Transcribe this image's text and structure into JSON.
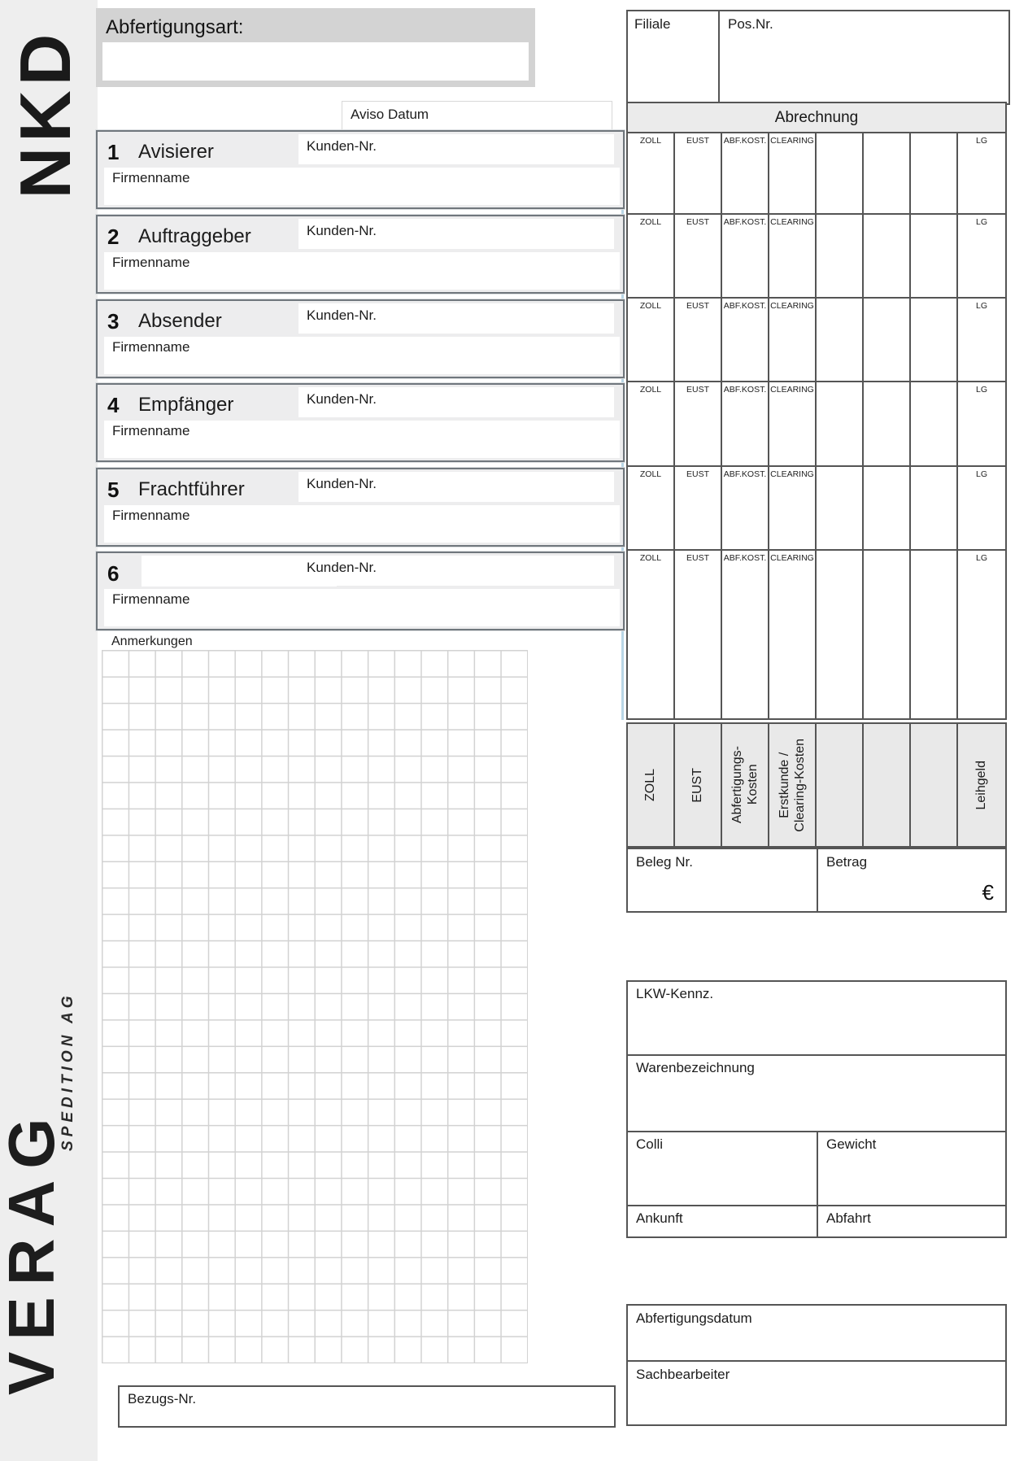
{
  "brand": {
    "top_logo": "NKD",
    "bottom_logo_main": "VERAG",
    "bottom_logo_sub": "SPEDITION AG"
  },
  "header": {
    "abfertigungsart_label": "Abfertigungsart:",
    "filiale_label": "Filiale",
    "pos_nr_label": "Pos.Nr.",
    "aviso_datum_label": "Aviso Datum"
  },
  "abrechnung": {
    "title": "Abrechnung",
    "columns": [
      "ZOLL",
      "EUST",
      "ABF.KOST.",
      "CLEARING",
      "",
      "",
      "",
      "LG"
    ]
  },
  "sections": [
    {
      "num": "1",
      "title": "Avisierer",
      "kunden_label": "Kunden-Nr.",
      "firmen_label": "Firmenname"
    },
    {
      "num": "2",
      "title": "Auftraggeber",
      "kunden_label": "Kunden-Nr.",
      "firmen_label": "Firmenname"
    },
    {
      "num": "3",
      "title": "Absender",
      "kunden_label": "Kunden-Nr.",
      "firmen_label": "Firmenname"
    },
    {
      "num": "4",
      "title": "Empfänger",
      "kunden_label": "Kunden-Nr.",
      "firmen_label": "Firmenname"
    },
    {
      "num": "5",
      "title": "Frachtführer",
      "kunden_label": "Kunden-Nr.",
      "firmen_label": "Firmenname"
    },
    {
      "num": "6",
      "title": "",
      "kunden_label": "Kunden-Nr.",
      "firmen_label": "Firmenname"
    }
  ],
  "rotated_columns": [
    "ZOLL",
    "EUST",
    "Abfertigungs-\nKosten",
    "Erstkunde /\nClearing-Kosten",
    "",
    "",
    "",
    "Leihgeld"
  ],
  "settlement": {
    "beleg_label": "Beleg Nr.",
    "betrag_label": "Betrag",
    "currency_symbol": "€"
  },
  "notes": {
    "anmerkungen_label": "Anmerkungen"
  },
  "cargo": {
    "lkw_label": "LKW-Kennz.",
    "waren_label": "Warenbezeichnung",
    "colli_label": "Colli",
    "gewicht_label": "Gewicht",
    "ankunft_label": "Ankunft",
    "abfahrt_label": "Abfahrt"
  },
  "footer": {
    "abfertigungsdatum_label": "Abfertigungsdatum",
    "sachbearbeiter_label": "Sachbearbeiter",
    "bezugs_nr_label": "Bezugs-Nr."
  },
  "colors": {
    "band_gray": "#d3d3d3",
    "strip_gray": "#eeeeee",
    "section_gray": "#ededee",
    "border_dark": "#555555",
    "accent_blue_edge": "#b9d6e6"
  }
}
